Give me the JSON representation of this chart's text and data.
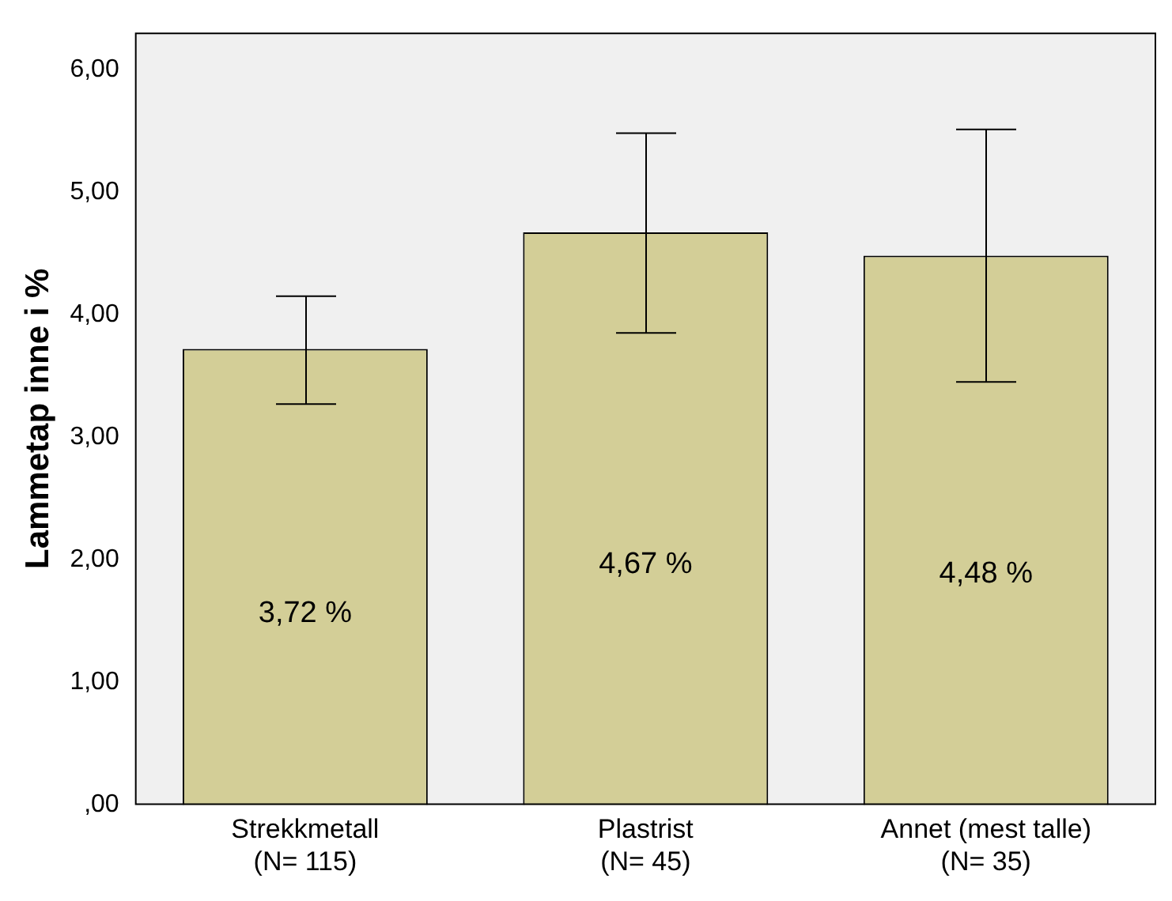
{
  "chart_data": {
    "type": "bar",
    "ylabel": "Lammetap inne i %",
    "categories": [
      "Strekkmetall\n(N= 115)",
      "Plastrist\n(N= 45)",
      "Annet (mest talle)\n(N= 35)"
    ],
    "values": [
      3.72,
      4.67,
      4.48
    ],
    "errors": [
      [
        3.27,
        4.15
      ],
      [
        3.85,
        5.48
      ],
      [
        3.45,
        5.51
      ]
    ],
    "value_labels": [
      "3,72 %",
      "4,67 %",
      "4,48 %"
    ],
    "color": "#d3ce97",
    "ylim": [
      0,
      6.3
    ],
    "yticks": [
      {
        "value": 0,
        "label": ",00"
      },
      {
        "value": 1,
        "label": "1,00"
      },
      {
        "value": 2,
        "label": "2,00"
      },
      {
        "value": 3,
        "label": "3,00"
      },
      {
        "value": 4,
        "label": "4,00"
      },
      {
        "value": 5,
        "label": "5,00"
      },
      {
        "value": 6,
        "label": "6,00"
      }
    ],
    "grid": false,
    "legend": false
  }
}
